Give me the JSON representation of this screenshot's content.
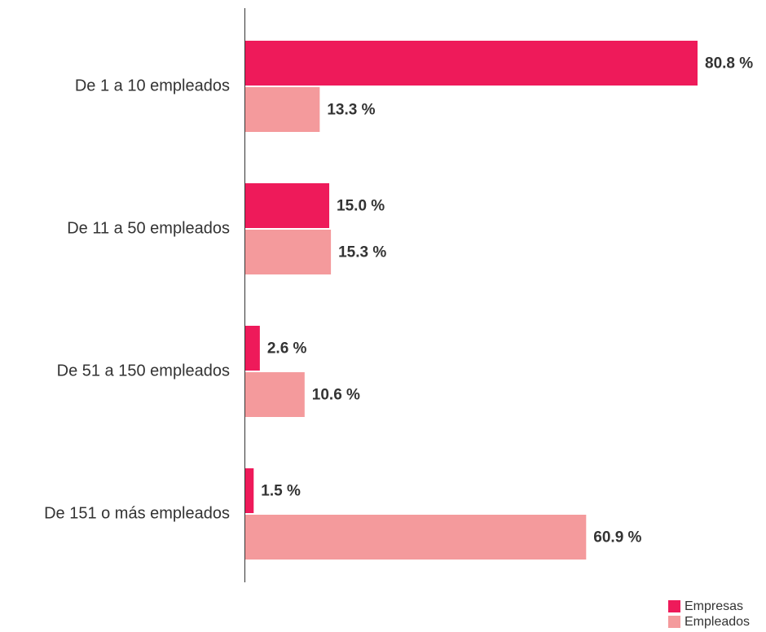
{
  "chart_data": {
    "type": "bar",
    "orientation": "horizontal",
    "categories": [
      "De 1 a 10 empleados",
      "De 11 a 50 empleados",
      "De 51 a 150 empleados",
      "De 151 o más empleados"
    ],
    "series": [
      {
        "name": "Empresas",
        "color": "#ee1a5a",
        "values": [
          80.8,
          15.0,
          2.6,
          1.5
        ],
        "labels": [
          "80.8 %",
          "15.0 %",
          "2.6 %",
          "1.5 %"
        ]
      },
      {
        "name": "Empleados",
        "color": "#f49a9c",
        "values": [
          13.3,
          15.3,
          10.6,
          60.9
        ],
        "labels": [
          "13.3 %",
          "15.3 %",
          "10.6 %",
          "60.9 %"
        ]
      }
    ],
    "xlim": [
      0,
      80.8
    ],
    "legend_position": "bottom-right",
    "grid": false
  }
}
